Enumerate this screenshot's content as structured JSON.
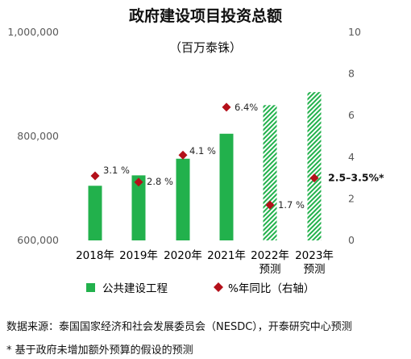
{
  "chart_data": {
    "type": "bar",
    "title": "政府建设项目投资总额",
    "subtitle": "（百万泰铢）",
    "categories": [
      "2018年",
      "2019年",
      "2020年",
      "2021年",
      "2022年\n预测",
      "2023年\n预测"
    ],
    "y_left": {
      "ylim": [
        600000,
        1000000
      ],
      "ticks": [
        "600,000",
        "800,000",
        "1,000,000"
      ]
    },
    "y_right": {
      "ylim": [
        0,
        10
      ],
      "ticks": [
        "0",
        "2",
        "4",
        "6",
        "8",
        "10"
      ]
    },
    "series": [
      {
        "name": "公共建设工程",
        "axis": "left",
        "type": "bar",
        "color": "#22b14c",
        "values": [
          705000,
          725000,
          757000,
          805000,
          860000,
          885000
        ],
        "forecast": [
          false,
          false,
          false,
          false,
          true,
          true
        ]
      },
      {
        "name": "%年同比（右轴）",
        "axis": "right",
        "type": "scatter",
        "marker": "diamond",
        "color": "#b4101a",
        "values": [
          3.1,
          2.8,
          4.1,
          6.4,
          1.7,
          3.0
        ],
        "labels": [
          "3.1 %",
          "2.8 %",
          "4.1 %",
          "6.4%",
          "1.7 %",
          "2.5–3.5%*"
        ]
      }
    ]
  },
  "footnotes": {
    "source": "数据来源：泰国国家经济和社会发展委员会（NESDC），开泰研究中心预测",
    "note": "* 基于政府未增加额外预算的假设的预测"
  }
}
